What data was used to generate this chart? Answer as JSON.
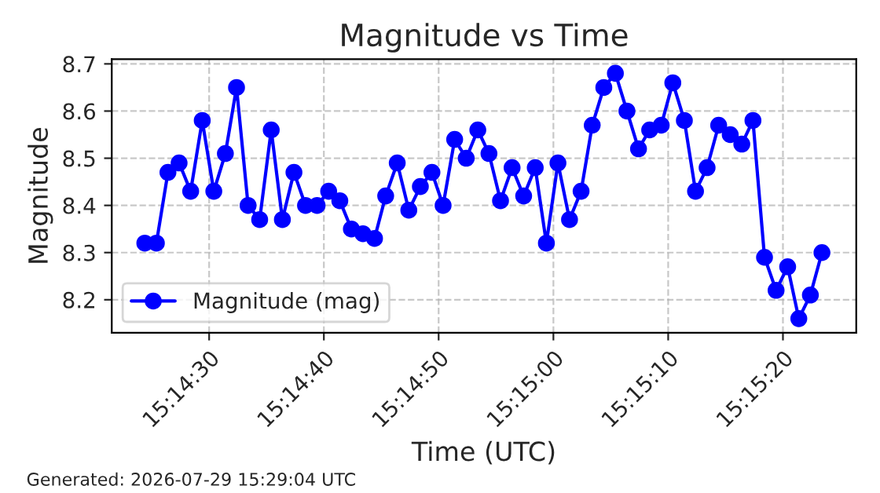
{
  "chart_data": {
    "type": "line",
    "title": "Magnitude vs Time",
    "xlabel": "Time (UTC)",
    "ylabel": "Magnitude",
    "x": [
      15.24011,
      15.24039,
      15.24067,
      15.24094,
      15.24122,
      15.2415,
      15.24178,
      15.24206,
      15.24233,
      15.24261,
      15.24289,
      15.24317,
      15.24344,
      15.24372,
      15.244,
      15.24428,
      15.24456,
      15.24483,
      15.24511,
      15.24539,
      15.24567,
      15.24594,
      15.24622,
      15.2465,
      15.24678,
      15.24706,
      15.24733,
      15.24761,
      15.24789,
      15.24817,
      15.24844,
      15.24872,
      15.249,
      15.24928,
      15.24956,
      15.24983,
      15.25011,
      15.25039,
      15.25067,
      15.25094,
      15.25122,
      15.2515,
      15.25178,
      15.25206,
      15.25233,
      15.25261,
      15.25289,
      15.25317,
      15.25344,
      15.25372,
      15.254,
      15.25428,
      15.25456,
      15.25483,
      15.25511,
      15.25539,
      15.25567,
      15.25594,
      15.25622,
      15.2565
    ],
    "series": [
      {
        "name": "Magnitude (mag)",
        "color": "#0000ff",
        "values": [
          8.32,
          8.32,
          8.47,
          8.49,
          8.43,
          8.58,
          8.43,
          8.51,
          8.65,
          8.4,
          8.37,
          8.56,
          8.37,
          8.47,
          8.4,
          8.4,
          8.43,
          8.41,
          8.35,
          8.34,
          8.33,
          8.42,
          8.49,
          8.39,
          8.44,
          8.47,
          8.4,
          8.54,
          8.5,
          8.56,
          8.51,
          8.41,
          8.48,
          8.42,
          8.48,
          8.32,
          8.49,
          8.37,
          8.43,
          8.57,
          8.65,
          8.68,
          8.6,
          8.52,
          8.56,
          8.57,
          8.66,
          8.58,
          8.43,
          8.48,
          8.57,
          8.55,
          8.53,
          8.58,
          8.29,
          8.22,
          8.27,
          8.16,
          8.21,
          8.3
        ]
      }
    ],
    "xlim": [
      15.23931,
      15.25733
    ],
    "xticks": [
      {
        "value": 15.241667,
        "label": "15:14:30"
      },
      {
        "value": 15.244444,
        "label": "15:14:40"
      },
      {
        "value": 15.247222,
        "label": "15:14:50"
      },
      {
        "value": 15.25,
        "label": "15:15:00"
      },
      {
        "value": 15.252778,
        "label": "15:15:10"
      },
      {
        "value": 15.255556,
        "label": "15:15:20"
      }
    ],
    "ylim": [
      8.13,
      8.71
    ],
    "yticks": [
      8.2,
      8.3,
      8.4,
      8.5,
      8.6,
      8.7
    ],
    "grid": true,
    "legend": "bottom left",
    "marker": "circle",
    "line_style": "solid",
    "annotations": [
      "Generated: 2026-07-29 15:29:04 UTC"
    ]
  }
}
